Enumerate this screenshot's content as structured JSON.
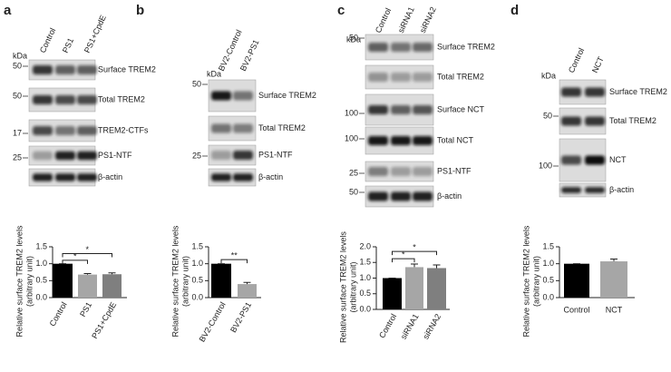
{
  "blots": [
    {
      "panel": "a",
      "unit": "kDa",
      "lanes": [
        "Control",
        "PS1",
        "PS1+CpdE"
      ],
      "rows": [
        {
          "label": "Surface TREM2",
          "marker": 50
        },
        {
          "label": "Total TREM2",
          "marker": 50
        },
        {
          "label": "TREM2-CTFs",
          "marker": 17
        },
        {
          "label": "PS1-NTF",
          "marker": 25
        },
        {
          "label": "β-actin"
        }
      ]
    },
    {
      "panel": "b",
      "unit": "kDa",
      "lanes": [
        "BV2-Control",
        "BV2-PS1"
      ],
      "rows": [
        {
          "label": "Surface TREM2",
          "marker": 50
        },
        {
          "label": "Total TREM2"
        },
        {
          "label": "PS1-NTF",
          "marker": 25
        },
        {
          "label": "β-actin"
        }
      ]
    },
    {
      "panel": "c",
      "unit": "kDa",
      "lanes": [
        "Control",
        "siRNA1",
        "siRNA2"
      ],
      "rows": [
        {
          "label": "Surface TREM2",
          "marker": 50
        },
        {
          "label": "Total TREM2"
        },
        {
          "label": "Surface NCT",
          "marker": 100
        },
        {
          "label": "Total NCT",
          "marker": 100
        },
        {
          "label": "PS1-NTF",
          "marker": 25
        },
        {
          "label": "β-actin",
          "marker": 50
        }
      ]
    },
    {
      "panel": "d",
      "unit": "kDa",
      "lanes": [
        "Control",
        "NCT"
      ],
      "rows": [
        {
          "label": "Surface TREM2"
        },
        {
          "label": "Total TREM2",
          "marker": 50
        },
        {
          "label": "NCT",
          "marker": 100
        },
        {
          "label": "β-actin"
        }
      ]
    }
  ],
  "chart_data": [
    {
      "type": "bar",
      "ylabel": [
        "Relative surface TREM2 levels",
        "(arbitrary unit)"
      ],
      "categories": [
        "Control",
        "PS1",
        "PS1+CpdE"
      ],
      "values": [
        1.0,
        0.68,
        0.69
      ],
      "errors": [
        0,
        0.03,
        0.04
      ],
      "colors": [
        "#000000",
        "#a6a6a6",
        "#7f7f7f"
      ],
      "ylim": [
        0,
        1.5
      ],
      "yticks": [
        {
          "value": 0,
          "label": "0.0"
        },
        0.5,
        {
          "value": 1,
          "label": "1.0"
        },
        1.5
      ],
      "significance": [
        {
          "label": "*",
          "from": 0,
          "to": 1,
          "y": 1.1
        },
        {
          "label": "*",
          "from": 0,
          "to": 2,
          "y": 1.3
        }
      ]
    },
    {
      "type": "bar",
      "ylabel": [
        "Relative surface TREM2 levels",
        "(arbitrary unit)"
      ],
      "categories": [
        "BV2-Control",
        "BV2-PS1"
      ],
      "values": [
        1.0,
        0.4
      ],
      "errors": [
        0,
        0.05
      ],
      "colors": [
        "#000000",
        "#a6a6a6"
      ],
      "ylim": [
        0,
        1.5
      ],
      "yticks": [
        {
          "value": 0,
          "label": "0.0"
        },
        0.5,
        {
          "value": 1,
          "label": "1.0"
        },
        1.5
      ],
      "significance": [
        {
          "label": "**",
          "from": 0,
          "to": 1,
          "y": 1.12
        }
      ]
    },
    {
      "type": "bar",
      "ylabel": [
        "Relative surface TREM2 levels",
        "(arbitrary unit)"
      ],
      "categories": [
        "Control",
        "siRNA1",
        "siRNA2"
      ],
      "values": [
        1.0,
        1.35,
        1.32
      ],
      "errors": [
        0,
        0.1,
        0.1
      ],
      "colors": [
        "#000000",
        "#a6a6a6",
        "#7f7f7f"
      ],
      "ylim": [
        0,
        2
      ],
      "yticks": [
        {
          "value": 0,
          "label": "0.0"
        },
        0.5,
        {
          "value": 1,
          "label": "1.0"
        },
        1.5,
        {
          "value": 2,
          "label": "2.0"
        }
      ],
      "significance": [
        {
          "label": "*",
          "from": 0,
          "to": 1,
          "y": 1.62
        },
        {
          "label": "*",
          "from": 0,
          "to": 2,
          "y": 1.85
        }
      ]
    },
    {
      "type": "bar",
      "ylabel": [
        "Relative surface TREM2 levels",
        "(arbitrary unit)"
      ],
      "categories": [
        "Control",
        "NCT"
      ],
      "values": [
        1.0,
        1.07
      ],
      "errors": [
        0,
        0.07
      ],
      "colors": [
        "#000000",
        "#a6a6a6"
      ],
      "ylim": [
        0,
        1.5
      ],
      "yticks": [
        {
          "value": 0,
          "label": "0.0"
        },
        0.5,
        {
          "value": 1,
          "label": "1.0"
        },
        1.5
      ]
    }
  ]
}
